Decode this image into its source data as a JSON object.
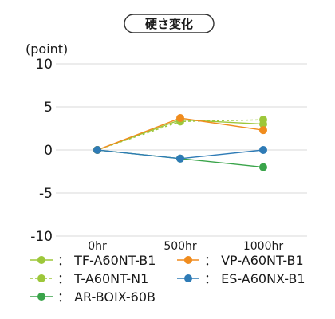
{
  "chart_data": {
    "type": "line",
    "title": "硬さ変化",
    "ylabel": "(point)",
    "xlabel": "",
    "categories": [
      "0hr",
      "500hr",
      "1000hr"
    ],
    "ylim": [
      -10,
      10
    ],
    "yticks": [
      10,
      5,
      0,
      -5,
      -10
    ],
    "grid": true,
    "legend_position": "bottom",
    "legend_separator": "：",
    "series": [
      {
        "name": "TF-A60NT-B1",
        "values": [
          0,
          3.5,
          3.0
        ],
        "color": "#9dc73a",
        "dash": false
      },
      {
        "name": "T-A60NT-N1",
        "values": [
          0,
          3.3,
          3.5
        ],
        "color": "#9dc73a",
        "dash": true
      },
      {
        "name": "AR-BOIX-60B",
        "values": [
          0,
          -1.0,
          -2.0
        ],
        "color": "#3aa44a",
        "dash": false
      },
      {
        "name": "VP-A60NT-B1",
        "values": [
          0,
          3.7,
          2.3
        ],
        "color": "#f08c1e",
        "dash": false
      },
      {
        "name": "ES-A60NX-B1",
        "values": [
          0,
          -1.0,
          0
        ],
        "color": "#2e7bb6",
        "dash": false
      }
    ]
  }
}
